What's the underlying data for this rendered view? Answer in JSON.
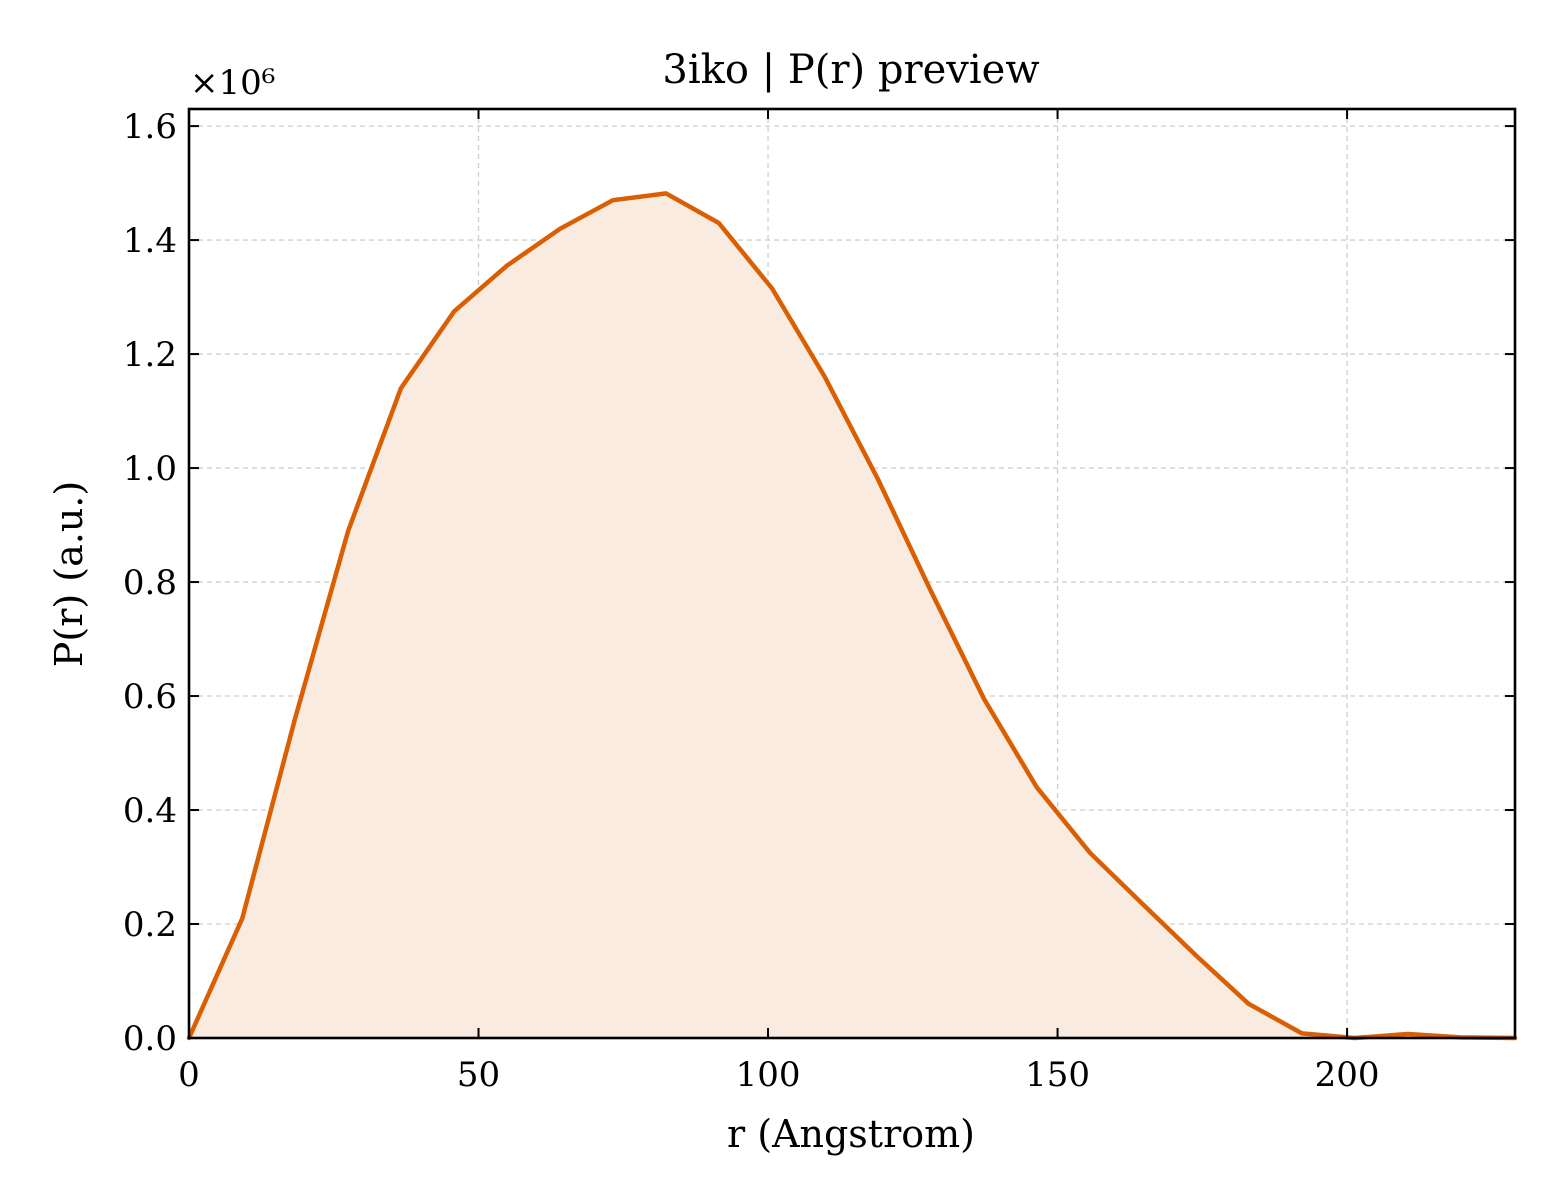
{
  "chart_data": {
    "type": "area",
    "title": "3iko | P(r) preview",
    "xlabel": "r (Angstrom)",
    "ylabel": "P(r) (a.u.)",
    "y_offset_text": "×10⁶",
    "xlim": [
      0,
      229
    ],
    "ylim": [
      0,
      1.63
    ],
    "x_ticks": [
      0,
      50,
      100,
      150,
      200
    ],
    "y_ticks": [
      0.0,
      0.2,
      0.4,
      0.6,
      0.8,
      1.0,
      1.2,
      1.4,
      1.6
    ],
    "x_tick_labels": [
      "0",
      "50",
      "100",
      "150",
      "200"
    ],
    "y_tick_labels": [
      "0.0",
      "0.2",
      "0.4",
      "0.6",
      "0.8",
      "1.0",
      "1.2",
      "1.4",
      "1.6"
    ],
    "grid": true,
    "line_color": "#d95f02",
    "fill_color": "#f9ebe0",
    "series": [
      {
        "x": [
          0,
          9.2,
          18.3,
          27.5,
          36.6,
          45.8,
          54.9,
          64.1,
          73.2,
          82.4,
          91.5,
          100.7,
          109.8,
          119.0,
          128.1,
          137.3,
          146.4,
          155.6,
          164.7,
          173.9,
          183.0,
          192.2,
          201.3,
          210.5,
          219.6,
          229.0
        ],
        "y": [
          0.0,
          0.21,
          0.56,
          0.89,
          1.14,
          1.275,
          1.355,
          1.42,
          1.47,
          1.482,
          1.43,
          1.315,
          1.16,
          0.98,
          0.785,
          0.595,
          0.44,
          0.325,
          0.235,
          0.145,
          0.06,
          0.008,
          0.0,
          0.007,
          0.001,
          0.0
        ]
      }
    ]
  }
}
